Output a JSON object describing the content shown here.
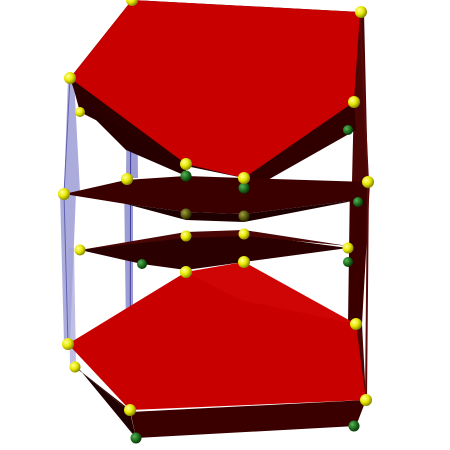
{
  "colors": {
    "background": "#ffffff",
    "face_red": "#c80000",
    "face_red_light": "#d80808",
    "face_dark": "#3a0000",
    "face_darker": "#240000",
    "face_edge_dark": "#4a0505",
    "blue_strut": "#8a8acc",
    "blue_strut_light": "#b4b4e0",
    "node_yellow": "#e8e800",
    "node_yellow_highlight": "#ffff9a",
    "node_green": "#1e6e1e",
    "node_green_highlight": "#5ab45a",
    "node_olive": "#6a6a10"
  },
  "icons": {
    "vertex": "sphere-node-icon"
  }
}
